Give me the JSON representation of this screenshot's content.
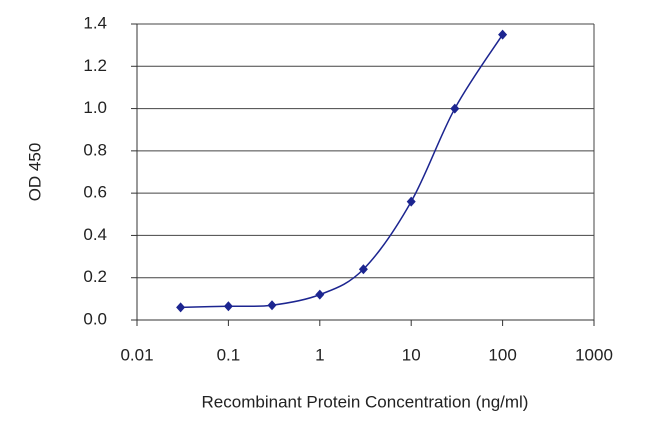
{
  "chart_data": {
    "type": "line",
    "xlabel": "Recombinant Protein Concentration (ng/ml)",
    "ylabel": "OD 450",
    "x": [
      0.03,
      0.1,
      0.3,
      1,
      3,
      10,
      30,
      100
    ],
    "series": [
      {
        "color": "#1c2590",
        "values": [
          0.06,
          0.065,
          0.07,
          0.12,
          0.24,
          0.56,
          1.0,
          1.35
        ]
      }
    ],
    "xscale": "log",
    "xlim": [
      0.01,
      1000
    ],
    "xticks": [
      0.01,
      0.1,
      1,
      10,
      100,
      1000
    ],
    "ylim": [
      0,
      1.4
    ],
    "yticks": [
      {
        "value": 0,
        "label": "0.0"
      },
      0.2,
      0.4,
      0.6,
      0.8,
      {
        "value": 1,
        "label": "1.0"
      },
      1.2,
      1.4
    ],
    "grid": true
  }
}
